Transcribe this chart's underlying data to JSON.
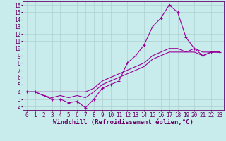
{
  "background_color": "#c8ecec",
  "grid_color": "#b0d0d0",
  "line_color": "#990099",
  "xlim": [
    -0.5,
    23.5
  ],
  "ylim": [
    1.5,
    16.5
  ],
  "xticks": [
    0,
    1,
    2,
    3,
    4,
    5,
    6,
    7,
    8,
    9,
    10,
    11,
    12,
    13,
    14,
    15,
    16,
    17,
    18,
    19,
    20,
    21,
    22,
    23
  ],
  "yticks": [
    2,
    3,
    4,
    5,
    6,
    7,
    8,
    9,
    10,
    11,
    12,
    13,
    14,
    15,
    16
  ],
  "xlabel": "Windchill (Refroidissement éolien,°C)",
  "series": [
    {
      "x": [
        0,
        1,
        2,
        3,
        4,
        5,
        6,
        7,
        8,
        9,
        10,
        11,
        12,
        13,
        14,
        15,
        16,
        17,
        18,
        19,
        20,
        21,
        22,
        23
      ],
      "y": [
        4,
        4,
        3.5,
        3,
        3,
        2.5,
        2.7,
        1.8,
        3,
        4.5,
        5,
        5.5,
        8,
        9,
        10.5,
        13,
        14.2,
        16,
        15,
        11.5,
        10,
        9,
        9.5,
        9.5
      ],
      "marker": true
    },
    {
      "x": [
        0,
        1,
        2,
        3,
        4,
        5,
        6,
        7,
        8,
        9,
        10,
        11,
        12,
        13,
        14,
        15,
        16,
        17,
        18,
        19,
        20,
        21,
        22,
        23
      ],
      "y": [
        4,
        4,
        3.5,
        3.2,
        3.5,
        3.2,
        3.5,
        3.2,
        4,
        5,
        5.5,
        6,
        6.5,
        7,
        7.5,
        8.5,
        9,
        9.5,
        9.5,
        9.5,
        10,
        9.5,
        9.5,
        9.5
      ],
      "marker": false
    },
    {
      "x": [
        0,
        1,
        2,
        3,
        4,
        5,
        6,
        7,
        8,
        9,
        10,
        11,
        12,
        13,
        14,
        15,
        16,
        17,
        18,
        19,
        20,
        21,
        22,
        23
      ],
      "y": [
        4,
        4,
        4,
        4,
        4,
        4,
        4,
        4,
        4.5,
        5.5,
        6,
        6.5,
        7,
        7.5,
        8,
        9,
        9.5,
        10,
        10,
        9.5,
        9.5,
        9,
        9.5,
        9.5
      ],
      "marker": false
    }
  ],
  "tick_color": "#660066",
  "label_color": "#660066",
  "font_size_xlabel": 6.5,
  "font_size_tick": 5.5
}
